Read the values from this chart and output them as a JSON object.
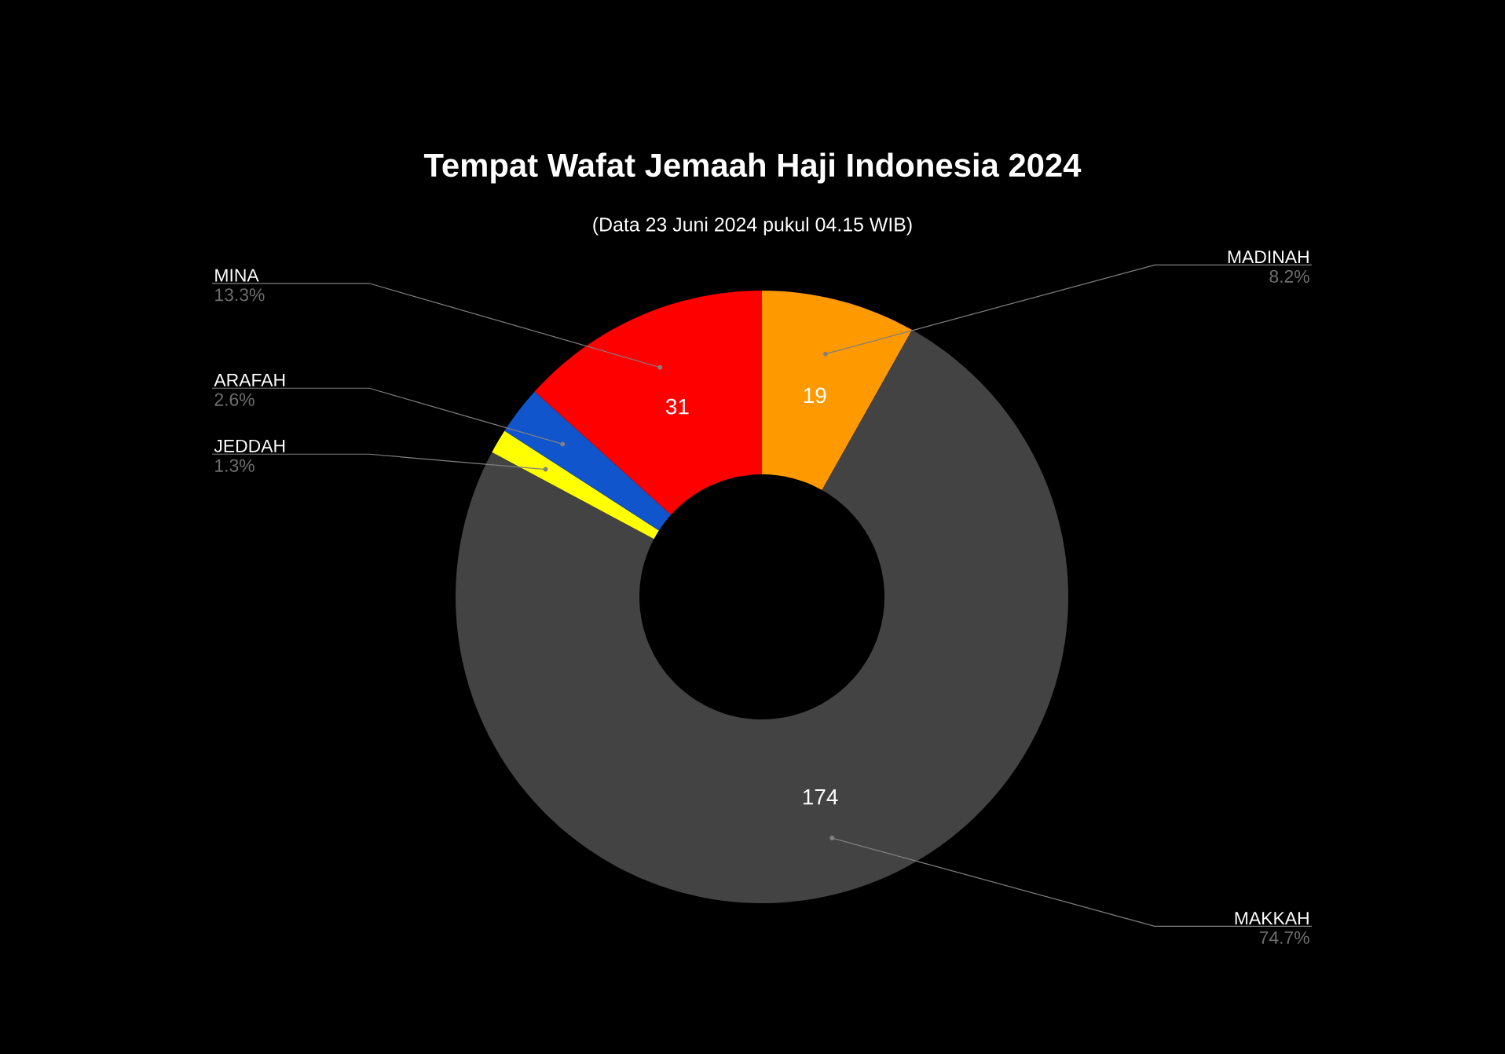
{
  "chart_data": {
    "type": "donut",
    "title": "Tempat Wafat Jemaah Haji Indonesia 2024",
    "subtitle": "(Data 23 Juni 2024 pukul 04.15 WIB)",
    "categories": [
      "MADINAH",
      "MAKKAH",
      "JEDDAH",
      "ARAFAH",
      "MINA"
    ],
    "values": [
      19,
      174,
      3,
      6,
      31
    ],
    "colors": [
      "#ff9900",
      "#434343",
      "#ffff00",
      "#1155cc",
      "#ff0000"
    ],
    "value_labels": [
      "19",
      "174",
      null,
      null,
      "31"
    ],
    "annotations": [
      "8.2%",
      "74.7%",
      "1.3%",
      "2.6%",
      "13.3%"
    ]
  }
}
